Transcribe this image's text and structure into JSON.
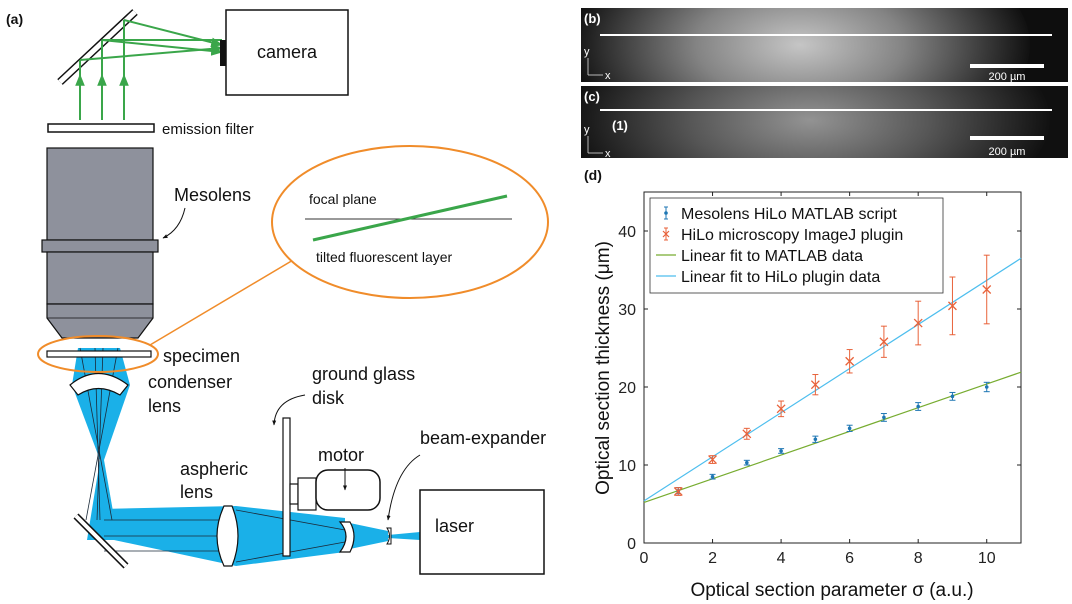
{
  "panel_labels": {
    "a": "(a)",
    "b": "(b)",
    "c": "(c)",
    "d": "(d)"
  },
  "diagram": {
    "camera": "camera",
    "emission_filter": "emission filter",
    "mesolens": "Mesolens",
    "specimen": "specimen",
    "condenser": [
      "condenser",
      "lens"
    ],
    "aspheric": [
      "aspheric",
      "lens"
    ],
    "ground_glass": [
      "ground glass",
      "disk"
    ],
    "motor": "motor",
    "beam_expander": "beam-expander",
    "laser": "laser",
    "inset_focal_plane": "focal plane",
    "inset_tilted_layer": "tilted fluorescent layer"
  },
  "micrographs": {
    "b": {
      "scale_bar": "200 µm",
      "axis_y": "y",
      "axis_x": "x"
    },
    "c": {
      "scale_bar": "200 µm",
      "axis_y": "y",
      "axis_x": "x",
      "marker": "(1)"
    }
  },
  "colors": {
    "green": "#3aa64a",
    "orange": "#f08c2a",
    "blue": "#1ab0e8",
    "lens_gray": "#8e919c",
    "matlab": "#1f77b4",
    "imagej": "#e8623a",
    "fit_matlab": "#77ac30",
    "fit_plugin": "#4dbeee"
  },
  "chart_data": {
    "type": "scatter",
    "xlabel": "Optical section parameter σ (a.u.)",
    "ylabel": "Optical section thickness (μm)",
    "xlim": [
      0,
      11
    ],
    "ylim": [
      0,
      45
    ],
    "xticks": [
      0,
      2,
      4,
      6,
      8,
      10
    ],
    "yticks": [
      0,
      10,
      20,
      30,
      40
    ],
    "grid": false,
    "legend_position": "top-left",
    "series": [
      {
        "name": "Mesolens HiLo MATLAB script",
        "marker": "dot-errorbar",
        "color": "#1f77b4",
        "x": [
          1,
          2,
          3,
          4,
          5,
          6,
          7,
          8,
          9,
          10
        ],
        "y": [
          6.7,
          8.5,
          10.3,
          11.8,
          13.3,
          14.7,
          16.1,
          17.5,
          18.8,
          20.0
        ],
        "err": [
          0.4,
          0.3,
          0.3,
          0.3,
          0.4,
          0.4,
          0.5,
          0.5,
          0.5,
          0.6
        ]
      },
      {
        "name": "HiLo microscopy ImageJ plugin",
        "marker": "x-errorbar",
        "color": "#e8623a",
        "x": [
          1,
          2,
          3,
          4,
          5,
          6,
          7,
          8,
          9,
          10
        ],
        "y": [
          6.6,
          10.7,
          14.0,
          17.2,
          20.3,
          23.3,
          25.8,
          28.2,
          30.4,
          32.5
        ],
        "err": [
          0.5,
          0.5,
          0.7,
          1.0,
          1.3,
          1.5,
          2.0,
          2.8,
          3.7,
          4.4
        ]
      },
      {
        "name": "Linear fit to MATLAB data",
        "marker": "line",
        "color": "#77ac30",
        "x": [
          0,
          11
        ],
        "y": [
          5.2,
          21.9
        ]
      },
      {
        "name": "Linear fit to HiLo plugin data",
        "marker": "line",
        "color": "#4dbeee",
        "x": [
          0,
          11
        ],
        "y": [
          5.4,
          36.5
        ]
      }
    ]
  }
}
